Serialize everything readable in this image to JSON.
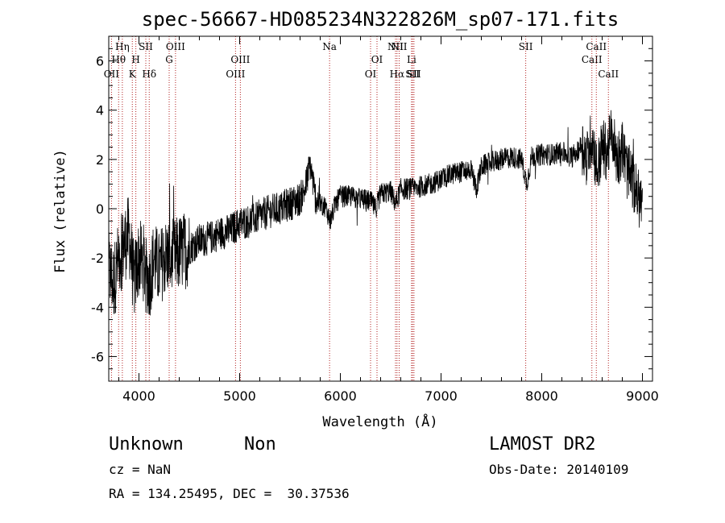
{
  "chart_data": {
    "type": "line",
    "title": "spec-56667-HD085234N322826M_sp07-171.fits",
    "xlabel": "Wavelength (Å)",
    "ylabel": "Flux (relative)",
    "xlim": [
      3700,
      9100
    ],
    "ylim": [
      -7,
      7
    ],
    "xticks": [
      4000,
      5000,
      6000,
      7000,
      8000,
      9000
    ],
    "yticks": [
      -6,
      -4,
      -2,
      0,
      2,
      4,
      6
    ],
    "grid": false,
    "line_color": "#000000",
    "marker_color": "#b22222",
    "series": [
      {
        "values_x": [
          3700,
          3750,
          3800,
          3850,
          3900,
          3950,
          4000,
          4050,
          4100,
          4150,
          4200,
          4250,
          4300,
          4350,
          4400,
          4500,
          4600,
          4700,
          4800,
          4900,
          5000,
          5100,
          5200,
          5300,
          5400,
          5500,
          5600,
          5650,
          5700,
          5750,
          5800,
          5850,
          5900,
          5950,
          6000,
          6100,
          6200,
          6300,
          6350,
          6400,
          6500,
          6550,
          6600,
          6700,
          6800,
          6900,
          7000,
          7100,
          7200,
          7300,
          7350,
          7400,
          7500,
          7600,
          7700,
          7800,
          7850,
          7900,
          8000,
          8100,
          8200,
          8300,
          8400,
          8450,
          8500,
          8550,
          8600,
          8650,
          8700,
          8750,
          8800,
          8850,
          8900,
          8950,
          9000
        ],
        "values_y": [
          -2.5,
          -3.0,
          -2.0,
          -1.5,
          -1.0,
          -3.0,
          -2.0,
          -2.2,
          -3.0,
          -2.0,
          -2.5,
          -2.0,
          -1.9,
          -2.0,
          -1.8,
          -1.6,
          -1.3,
          -1.2,
          -1.0,
          -0.9,
          -0.6,
          -0.5,
          -0.3,
          -0.1,
          0.0,
          0.2,
          0.4,
          0.8,
          1.8,
          0.5,
          0.2,
          0.1,
          -0.5,
          0.2,
          0.5,
          0.5,
          0.4,
          0.3,
          0.0,
          0.6,
          0.7,
          0.2,
          0.8,
          0.8,
          0.9,
          1.0,
          1.2,
          1.4,
          1.5,
          1.6,
          0.8,
          1.7,
          1.9,
          2.0,
          2.1,
          2.0,
          1.0,
          2.1,
          2.2,
          2.2,
          2.3,
          2.1,
          2.6,
          2.0,
          3.0,
          1.5,
          2.5,
          2.3,
          3.1,
          2.0,
          2.5,
          1.5,
          1.2,
          0.5,
          0.2
        ]
      }
    ],
    "lines": [
      {
        "w": 3727,
        "label": "OII",
        "row": 2
      },
      {
        "w": 3798,
        "label": "Hθ",
        "row": 1
      },
      {
        "w": 3835,
        "label": "Hη",
        "row": 0
      },
      {
        "w": 3934,
        "label": "K",
        "row": 2
      },
      {
        "w": 3969,
        "label": "H",
        "row": 1
      },
      {
        "w": 4068,
        "label": "SII",
        "row": 0
      },
      {
        "w": 4102,
        "label": "Hδ",
        "row": 2
      },
      {
        "w": 4300,
        "label": "G",
        "row": 1
      },
      {
        "w": 4363,
        "label": "OIII",
        "row": 0
      },
      {
        "w": 4959,
        "label": "OIII",
        "row": 2
      },
      {
        "w": 5007,
        "label": "OIII",
        "row": 1
      },
      {
        "w": 5893,
        "label": "Na",
        "row": 0
      },
      {
        "w": 6300,
        "label": "OI",
        "row": 2
      },
      {
        "w": 6364,
        "label": "OI",
        "row": 1
      },
      {
        "w": 6548,
        "label": "NII",
        "row": 0
      },
      {
        "w": 6563,
        "label": "Hα",
        "row": 2
      },
      {
        "w": 6584,
        "label": "NII",
        "row": 0
      },
      {
        "w": 6707,
        "label": "Li",
        "row": 1
      },
      {
        "w": 6717,
        "label": "SII",
        "row": 2
      },
      {
        "w": 6731,
        "label": "SII",
        "row": 2
      },
      {
        "w": 7841,
        "label": "SII",
        "row": 0
      },
      {
        "w": 8498,
        "label": "CaII",
        "row": 1
      },
      {
        "w": 8542,
        "label": "CaII",
        "row": 0
      },
      {
        "w": 8662,
        "label": "CaII",
        "row": 2
      }
    ]
  },
  "info": {
    "class": "Unknown",
    "subclass": "Non",
    "cz": "cz = NaN",
    "radec": "RA = 134.25495, DEC =  30.37536",
    "survey": "LAMOST DR2",
    "obsdate": "Obs-Date: 20140109"
  }
}
